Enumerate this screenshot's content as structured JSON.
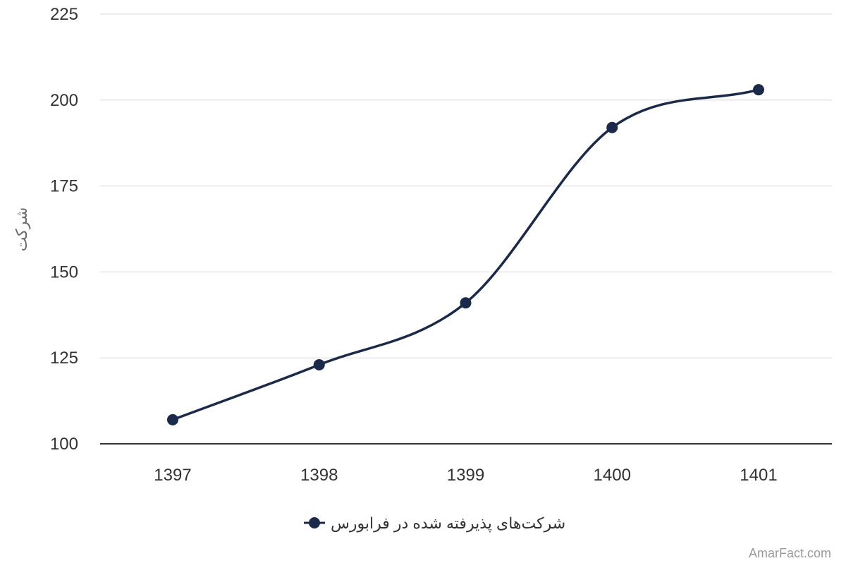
{
  "chart_data": {
    "type": "line",
    "categories": [
      "1397",
      "1398",
      "1399",
      "1400",
      "1401"
    ],
    "series": [
      {
        "name": "شرکت‌های پذیرفته شده در فرابورس",
        "values": [
          107,
          123,
          141,
          192,
          203
        ],
        "color": "#1b2a4a"
      }
    ],
    "ylabel": "شرکت",
    "xlabel": "",
    "ylim": [
      100,
      225
    ],
    "yticks": [
      100,
      125,
      150,
      175,
      200,
      225
    ],
    "grid": true,
    "smooth": true,
    "legend": "bottom-center",
    "gridline_color": "#e6e6e6",
    "axis_color": "#333333"
  },
  "credit": "AmarFact.com"
}
